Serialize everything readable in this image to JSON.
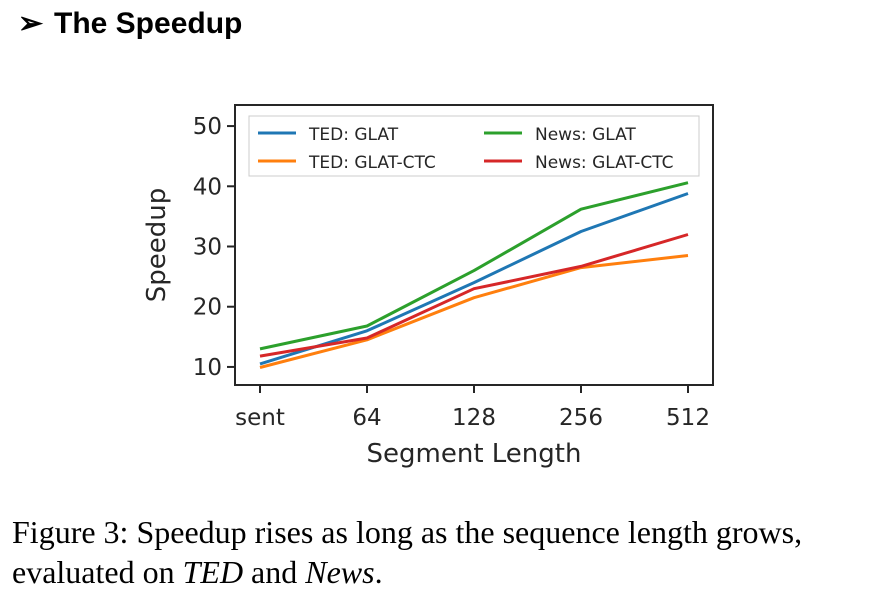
{
  "heading": {
    "arrow": "➢",
    "title": "The Speedup"
  },
  "chart_data": {
    "type": "line",
    "title": "",
    "xlabel": "Segment Length",
    "ylabel": "Speedup",
    "categories": [
      "sent",
      "64",
      "128",
      "256",
      "512"
    ],
    "yticks": [
      10,
      20,
      30,
      40,
      50
    ],
    "ylim": [
      7,
      53.5
    ],
    "grid": false,
    "legend_position": "top",
    "series": [
      {
        "name": "TED: GLAT",
        "color": "#1f77b4",
        "values": [
          10.5,
          16.0,
          24.0,
          32.5,
          38.8
        ]
      },
      {
        "name": "TED: GLAT-CTC",
        "color": "#ff7f0e",
        "values": [
          9.9,
          14.5,
          21.5,
          26.5,
          28.5
        ]
      },
      {
        "name": "News: GLAT",
        "color": "#2ca02c",
        "values": [
          13.0,
          16.8,
          26.0,
          36.2,
          40.6
        ]
      },
      {
        "name": "News: GLAT-CTC",
        "color": "#d62728",
        "values": [
          11.8,
          14.8,
          23.0,
          26.7,
          32.0
        ]
      }
    ]
  },
  "caption": {
    "prefix": "Figure 3: Speedup rises as long as the sequence length grows, evaluated on ",
    "dataset_a": "TED",
    "joiner": " and ",
    "dataset_b": "News",
    "suffix": "."
  }
}
